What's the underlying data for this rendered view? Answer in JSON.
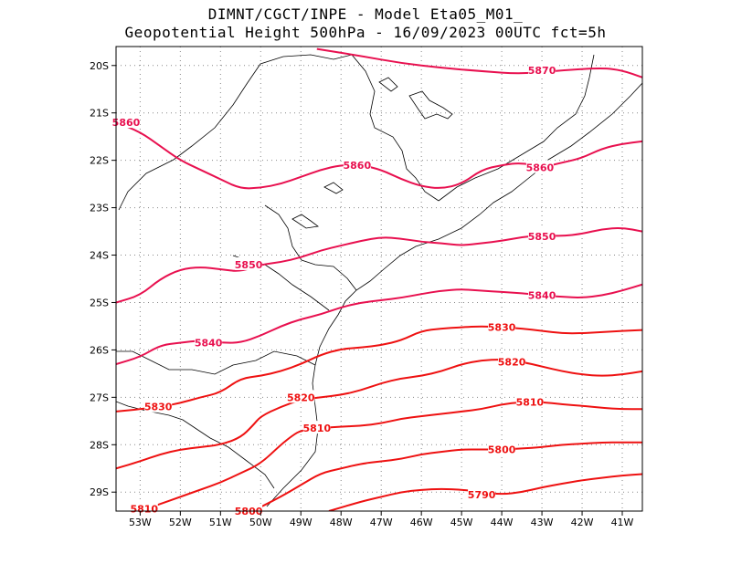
{
  "title": {
    "line1": "DIMNT/CGCT/INPE -  Model Eta05_M01_",
    "line2": "Geopotential Height 500hPa -  16/09/2023 00UTC fct=5h"
  },
  "colors": {
    "upper_contours": "#e8104f",
    "lower_contours": "#ee1111",
    "coast": "#000000",
    "grid": "#888888"
  },
  "chart_data": {
    "type": "contour",
    "field": "Geopotential Height 500hPa",
    "xaxis": {
      "ticks": [
        "53W",
        "52W",
        "51W",
        "50W",
        "49W",
        "48W",
        "47W",
        "46W",
        "45W",
        "44W",
        "43W",
        "42W",
        "41W"
      ],
      "range": [
        -53.6,
        -40.5
      ]
    },
    "yaxis": {
      "ticks": [
        "20S",
        "21S",
        "22S",
        "23S",
        "24S",
        "25S",
        "26S",
        "27S",
        "28S",
        "29S"
      ],
      "range": [
        -29.4,
        -19.6
      ]
    },
    "grid": true,
    "contours": [
      {
        "level": 5870,
        "label": "5870",
        "points": [
          [
            -48.6,
            -19.65
          ],
          [
            -47.5,
            -19.8
          ],
          [
            -46.5,
            -19.95
          ],
          [
            -45.5,
            -20.05
          ],
          [
            -44.5,
            -20.12
          ],
          [
            -43.5,
            -20.18
          ],
          [
            -42.5,
            -20.1
          ],
          [
            -41.5,
            -20.05
          ],
          [
            -41.0,
            -20.1
          ],
          [
            -40.5,
            -20.25
          ]
        ],
        "labels": [
          [
            -43.0,
            -20.1
          ]
        ]
      },
      {
        "level": 5860,
        "label": "5860",
        "points": [
          [
            -53.6,
            -21.2
          ],
          [
            -53.0,
            -21.4
          ],
          [
            -52.5,
            -21.7
          ],
          [
            -52.0,
            -22.0
          ],
          [
            -51.5,
            -22.2
          ],
          [
            -51.0,
            -22.4
          ],
          [
            -50.5,
            -22.6
          ],
          [
            -50.0,
            -22.58
          ],
          [
            -49.5,
            -22.5
          ],
          [
            -49.0,
            -22.35
          ],
          [
            -48.5,
            -22.2
          ],
          [
            -48.0,
            -22.1
          ],
          [
            -47.5,
            -22.1
          ],
          [
            -47.0,
            -22.2
          ],
          [
            -46.5,
            -22.4
          ],
          [
            -46.0,
            -22.55
          ],
          [
            -45.5,
            -22.6
          ],
          [
            -45.0,
            -22.5
          ],
          [
            -44.5,
            -22.2
          ],
          [
            -44.0,
            -22.1
          ],
          [
            -43.5,
            -22.05
          ],
          [
            -43.0,
            -22.15
          ],
          [
            -42.5,
            -22.05
          ],
          [
            -42.0,
            -21.95
          ],
          [
            -41.5,
            -21.75
          ],
          [
            -41.0,
            -21.65
          ],
          [
            -40.5,
            -21.6
          ]
        ],
        "labels": [
          [
            -53.35,
            -21.2
          ],
          [
            -47.6,
            -22.1
          ],
          [
            -43.05,
            -22.15
          ]
        ]
      },
      {
        "level": 5850,
        "label": "5850",
        "points": [
          [
            -53.6,
            -25.0
          ],
          [
            -53.0,
            -24.85
          ],
          [
            -52.5,
            -24.5
          ],
          [
            -52.0,
            -24.3
          ],
          [
            -51.5,
            -24.25
          ],
          [
            -51.0,
            -24.3
          ],
          [
            -50.5,
            -24.35
          ],
          [
            -50.0,
            -24.2
          ],
          [
            -49.5,
            -24.15
          ],
          [
            -49.0,
            -24.05
          ],
          [
            -48.5,
            -23.9
          ],
          [
            -48.0,
            -23.8
          ],
          [
            -47.5,
            -23.7
          ],
          [
            -47.0,
            -23.62
          ],
          [
            -46.5,
            -23.65
          ],
          [
            -46.0,
            -23.72
          ],
          [
            -45.5,
            -23.75
          ],
          [
            -45.0,
            -23.8
          ],
          [
            -44.5,
            -23.75
          ],
          [
            -44.0,
            -23.7
          ],
          [
            -43.5,
            -23.62
          ],
          [
            -43.0,
            -23.58
          ],
          [
            -42.5,
            -23.6
          ],
          [
            -42.0,
            -23.55
          ],
          [
            -41.5,
            -23.45
          ],
          [
            -41.0,
            -23.42
          ],
          [
            -40.5,
            -23.5
          ]
        ],
        "labels": [
          [
            -50.3,
            -24.2
          ],
          [
            -43.0,
            -23.6
          ]
        ]
      },
      {
        "level": 5840,
        "label": "5840",
        "points": [
          [
            -53.6,
            -26.3
          ],
          [
            -53.0,
            -26.15
          ],
          [
            -52.5,
            -25.9
          ],
          [
            -52.0,
            -25.85
          ],
          [
            -51.5,
            -25.8
          ],
          [
            -51.0,
            -25.85
          ],
          [
            -50.5,
            -25.85
          ],
          [
            -50.0,
            -25.7
          ],
          [
            -49.5,
            -25.5
          ],
          [
            -49.0,
            -25.35
          ],
          [
            -48.5,
            -25.25
          ],
          [
            -48.0,
            -25.1
          ],
          [
            -47.5,
            -25.0
          ],
          [
            -47.0,
            -24.95
          ],
          [
            -46.5,
            -24.9
          ],
          [
            -46.0,
            -24.82
          ],
          [
            -45.5,
            -24.75
          ],
          [
            -45.0,
            -24.72
          ],
          [
            -44.5,
            -24.75
          ],
          [
            -44.0,
            -24.78
          ],
          [
            -43.5,
            -24.8
          ],
          [
            -43.0,
            -24.85
          ],
          [
            -42.5,
            -24.88
          ],
          [
            -42.0,
            -24.9
          ],
          [
            -41.5,
            -24.85
          ],
          [
            -41.0,
            -24.75
          ],
          [
            -40.5,
            -24.62
          ]
        ],
        "labels": [
          [
            -51.3,
            -25.85
          ],
          [
            -43.0,
            -24.85
          ]
        ]
      },
      {
        "level": 5830,
        "label": "5830",
        "points": [
          [
            -53.6,
            -27.3
          ],
          [
            -53.0,
            -27.25
          ],
          [
            -52.5,
            -27.2
          ],
          [
            -52.0,
            -27.12
          ],
          [
            -51.5,
            -27.0
          ],
          [
            -51.0,
            -26.9
          ],
          [
            -50.5,
            -26.6
          ],
          [
            -50.0,
            -26.55
          ],
          [
            -49.5,
            -26.45
          ],
          [
            -49.0,
            -26.3
          ],
          [
            -48.5,
            -26.1
          ],
          [
            -48.0,
            -25.98
          ],
          [
            -47.5,
            -25.95
          ],
          [
            -47.0,
            -25.9
          ],
          [
            -46.5,
            -25.8
          ],
          [
            -46.0,
            -25.6
          ],
          [
            -45.5,
            -25.55
          ],
          [
            -45.0,
            -25.52
          ],
          [
            -44.5,
            -25.5
          ],
          [
            -44.0,
            -25.52
          ],
          [
            -43.5,
            -25.55
          ],
          [
            -43.0,
            -25.6
          ],
          [
            -42.5,
            -25.65
          ],
          [
            -42.0,
            -25.65
          ],
          [
            -41.5,
            -25.62
          ],
          [
            -41.0,
            -25.6
          ],
          [
            -40.5,
            -25.58
          ]
        ],
        "labels": [
          [
            -52.55,
            -27.2
          ],
          [
            -44.0,
            -25.52
          ]
        ]
      },
      {
        "level": 5820,
        "label": "5820",
        "points": [
          [
            -53.6,
            -28.5
          ],
          [
            -53.0,
            -28.35
          ],
          [
            -52.5,
            -28.2
          ],
          [
            -52.0,
            -28.1
          ],
          [
            -51.5,
            -28.05
          ],
          [
            -51.0,
            -28.0
          ],
          [
            -50.5,
            -27.85
          ],
          [
            -50.2,
            -27.6
          ],
          [
            -50.0,
            -27.4
          ],
          [
            -49.5,
            -27.2
          ],
          [
            -49.0,
            -27.05
          ],
          [
            -48.5,
            -27.0
          ],
          [
            -48.0,
            -26.95
          ],
          [
            -47.5,
            -26.85
          ],
          [
            -47.0,
            -26.7
          ],
          [
            -46.5,
            -26.6
          ],
          [
            -46.0,
            -26.55
          ],
          [
            -45.5,
            -26.45
          ],
          [
            -45.0,
            -26.3
          ],
          [
            -44.5,
            -26.22
          ],
          [
            -44.0,
            -26.2
          ],
          [
            -43.5,
            -26.25
          ],
          [
            -43.0,
            -26.35
          ],
          [
            -42.5,
            -26.45
          ],
          [
            -42.0,
            -26.52
          ],
          [
            -41.5,
            -26.55
          ],
          [
            -41.0,
            -26.52
          ],
          [
            -40.5,
            -26.45
          ]
        ],
        "labels": [
          [
            -49.0,
            -27.0
          ],
          [
            -43.75,
            -26.25
          ]
        ]
      },
      {
        "level": 5810,
        "label": "5810",
        "points": [
          [
            -53.0,
            -29.4
          ],
          [
            -52.5,
            -29.25
          ],
          [
            -52.0,
            -29.1
          ],
          [
            -51.5,
            -28.95
          ],
          [
            -51.0,
            -28.8
          ],
          [
            -50.5,
            -28.6
          ],
          [
            -50.0,
            -28.4
          ],
          [
            -49.5,
            -28.0
          ],
          [
            -49.2,
            -27.8
          ],
          [
            -49.0,
            -27.7
          ],
          [
            -48.5,
            -27.65
          ],
          [
            -48.0,
            -27.62
          ],
          [
            -47.5,
            -27.6
          ],
          [
            -47.0,
            -27.55
          ],
          [
            -46.5,
            -27.45
          ],
          [
            -46.0,
            -27.4
          ],
          [
            -45.5,
            -27.35
          ],
          [
            -45.0,
            -27.3
          ],
          [
            -44.5,
            -27.25
          ],
          [
            -44.0,
            -27.15
          ],
          [
            -43.5,
            -27.1
          ],
          [
            -43.0,
            -27.1
          ],
          [
            -42.5,
            -27.15
          ],
          [
            -42.0,
            -27.18
          ],
          [
            -41.5,
            -27.22
          ],
          [
            -41.0,
            -27.25
          ],
          [
            -40.5,
            -27.25
          ]
        ],
        "labels": [
          [
            -52.9,
            -29.35
          ],
          [
            -48.6,
            -27.65
          ],
          [
            -43.3,
            -27.1
          ]
        ]
      },
      {
        "level": 5800,
        "label": "5800",
        "points": [
          [
            -50.2,
            -29.4
          ],
          [
            -49.5,
            -29.1
          ],
          [
            -49.0,
            -28.85
          ],
          [
            -48.5,
            -28.6
          ],
          [
            -48.0,
            -28.5
          ],
          [
            -47.5,
            -28.4
          ],
          [
            -47.0,
            -28.35
          ],
          [
            -46.5,
            -28.3
          ],
          [
            -46.0,
            -28.2
          ],
          [
            -45.5,
            -28.15
          ],
          [
            -45.0,
            -28.1
          ],
          [
            -44.5,
            -28.1
          ],
          [
            -44.0,
            -28.1
          ],
          [
            -43.5,
            -28.08
          ],
          [
            -43.0,
            -28.05
          ],
          [
            -42.5,
            -28.0
          ],
          [
            -42.0,
            -27.98
          ],
          [
            -41.5,
            -27.95
          ],
          [
            -41.0,
            -27.95
          ],
          [
            -40.5,
            -27.95
          ]
        ],
        "labels": [
          [
            -50.3,
            -29.4
          ],
          [
            -44.0,
            -28.1
          ]
        ]
      },
      {
        "level": 5790,
        "label": "5790",
        "points": [
          [
            -48.3,
            -29.4
          ],
          [
            -47.5,
            -29.2
          ],
          [
            -47.0,
            -29.1
          ],
          [
            -46.5,
            -29.0
          ],
          [
            -46.0,
            -28.95
          ],
          [
            -45.5,
            -28.93
          ],
          [
            -45.0,
            -28.95
          ],
          [
            -44.5,
            -29.0
          ],
          [
            -44.0,
            -29.05
          ],
          [
            -43.5,
            -29.0
          ],
          [
            -43.0,
            -28.9
          ],
          [
            -42.5,
            -28.82
          ],
          [
            -42.0,
            -28.75
          ],
          [
            -41.5,
            -28.7
          ],
          [
            -41.0,
            -28.65
          ],
          [
            -40.5,
            -28.62
          ]
        ],
        "labels": [
          [
            -44.5,
            -29.05
          ]
        ]
      }
    ]
  }
}
